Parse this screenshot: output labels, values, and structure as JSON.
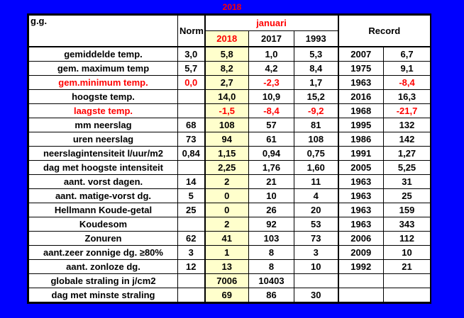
{
  "page_title": "2018",
  "header": {
    "gg": "g.g.",
    "norm": "Norm",
    "month": "januari",
    "years": [
      "2018",
      "2017",
      "1993"
    ],
    "record": "Record"
  },
  "rows": [
    {
      "label": "gemiddelde temp.",
      "norm": "3,0",
      "y2018": "5,8",
      "y2017": "1,0",
      "y1993": "5,3",
      "rec_year": "2007",
      "rec_val": "6,7",
      "neg": []
    },
    {
      "label": "gem. maximum temp",
      "norm": "5,7",
      "y2018": "8,2",
      "y2017": "4,2",
      "y1993": "8,4",
      "rec_year": "1975",
      "rec_val": "9,1",
      "neg": []
    },
    {
      "label": "gem.minimum temp.",
      "norm": "0,0",
      "y2018": "2,7",
      "y2017": "-2,3",
      "y1993": "1,7",
      "rec_year": "1963",
      "rec_val": "-8,4",
      "neg": [
        "label",
        "norm",
        "y2017",
        "rec_val"
      ]
    },
    {
      "label": "hoogste temp.",
      "norm": "",
      "y2018": "14,0",
      "y2017": "10,9",
      "y1993": "15,2",
      "rec_year": "2016",
      "rec_val": "16,3",
      "neg": []
    },
    {
      "label": "laagste temp.",
      "norm": "",
      "y2018": "-1,5",
      "y2017": "-8,4",
      "y1993": "-9,2",
      "rec_year": "1968",
      "rec_val": "-21,7",
      "neg": [
        "label",
        "y2018",
        "y2017",
        "y1993",
        "rec_val"
      ]
    },
    {
      "label": "mm neerslag",
      "norm": "68",
      "y2018": "108",
      "y2017": "57",
      "y1993": "81",
      "rec_year": "1995",
      "rec_val": "132",
      "neg": []
    },
    {
      "label": "uren neerslag",
      "norm": "73",
      "y2018": "94",
      "y2017": "61",
      "y1993": "108",
      "rec_year": "1986",
      "rec_val": "142",
      "neg": []
    },
    {
      "label": "neerslagintensiteit l/uur/m2",
      "norm": "0,84",
      "y2018": "1,15",
      "y2017": "0,94",
      "y1993": "0,75",
      "rec_year": "1991",
      "rec_val": "1,27",
      "neg": []
    },
    {
      "label": "dag met hoogste intensiteit",
      "norm": "",
      "y2018": "2,25",
      "y2017": "1,76",
      "y1993": "1,60",
      "rec_year": "2005",
      "rec_val": "5,25",
      "neg": []
    },
    {
      "label": "aant. vorst dagen.",
      "norm": "14",
      "y2018": "2",
      "y2017": "21",
      "y1993": "11",
      "rec_year": "1963",
      "rec_val": "31",
      "neg": []
    },
    {
      "label": "aant. matige-vorst dg.",
      "norm": "5",
      "y2018": "0",
      "y2017": "10",
      "y1993": "4",
      "rec_year": "1963",
      "rec_val": "25",
      "neg": []
    },
    {
      "label": "Hellmann Koude-getal",
      "norm": "25",
      "y2018": "0",
      "y2017": "26",
      "y1993": "20",
      "rec_year": "1963",
      "rec_val": "159",
      "neg": []
    },
    {
      "label": "Koudesom",
      "norm": "",
      "y2018": "2",
      "y2017": "92",
      "y1993": "53",
      "rec_year": "1963",
      "rec_val": "343",
      "neg": []
    },
    {
      "label": "Zonuren",
      "norm": "62",
      "y2018": "41",
      "y2017": "103",
      "y1993": "73",
      "rec_year": "2006",
      "rec_val": "112",
      "neg": []
    },
    {
      "label": "aant.zeer zonnige dg. ≥80%",
      "norm": "3",
      "y2018": "1",
      "y2017": "8",
      "y1993": "3",
      "rec_year": "2009",
      "rec_val": "10",
      "neg": []
    },
    {
      "label": "aant. zonloze dg.",
      "norm": "12",
      "y2018": "13",
      "y2017": "8",
      "y1993": "10",
      "rec_year": "1992",
      "rec_val": "21",
      "neg": []
    },
    {
      "label": "globale straling in j/cm2",
      "norm": "",
      "y2018": "7006",
      "y2017": "10403",
      "y1993": "",
      "rec_year": "",
      "rec_val": "",
      "neg": []
    },
    {
      "label": "dag met minste straling",
      "norm": "",
      "y2018": "69",
      "y2017": "86",
      "y1993": "30",
      "rec_year": "",
      "rec_val": "",
      "neg": []
    }
  ],
  "colors": {
    "background": "#0000ff",
    "highlight": "#ffffcc",
    "negative": "#ff0000"
  }
}
